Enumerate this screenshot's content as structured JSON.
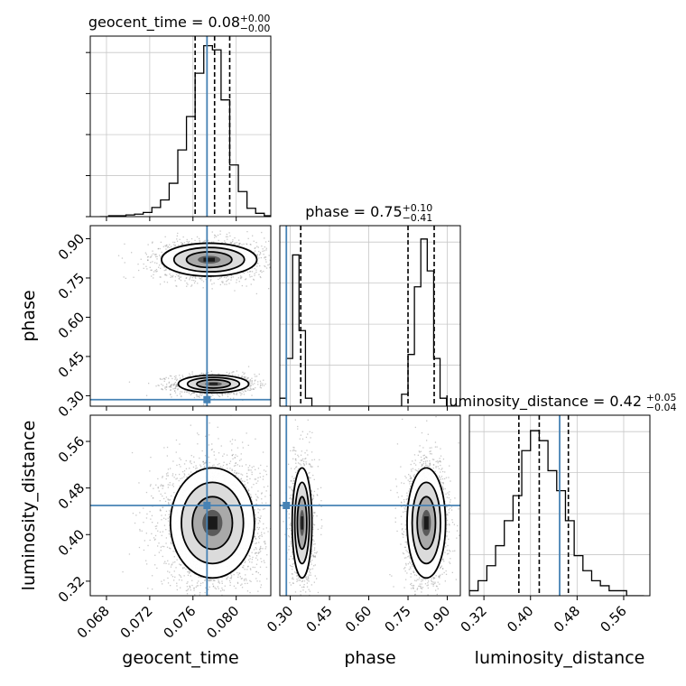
{
  "chart_data": {
    "type": "corner",
    "grid": true,
    "colors": {
      "truth": "#4682b4",
      "hist": "#000000",
      "quantile": "#000000",
      "points": "#9a9a9a",
      "grid": "#c8c8c8"
    },
    "parameters": [
      {
        "key": "geocent_time",
        "xlabel": "geocent_time",
        "range": [
          0.0665,
          0.0832
        ],
        "ticks": [
          "0.068",
          "0.072",
          "0.076",
          "0.080"
        ],
        "tick_values": [
          0.068,
          0.072,
          0.076,
          0.08
        ],
        "truth": 0.0773,
        "title": {
          "main": "geocent_time = 0.08",
          "sup": "+0.00",
          "sub": "−0.00"
        },
        "quantiles": [
          0.0762,
          0.078,
          0.0794
        ],
        "hist": {
          "bins": [
            0.0674,
            0.0682,
            0.069,
            0.0698,
            0.0706,
            0.0714,
            0.0722,
            0.073,
            0.0738,
            0.0746,
            0.0754,
            0.0762,
            0.077,
            0.0778,
            0.0786,
            0.0794,
            0.0802,
            0.081,
            0.0818,
            0.0826
          ],
          "counts": [
            0,
            1,
            1,
            2,
            3,
            5,
            11,
            20,
            40,
            80,
            120,
            172,
            205,
            200,
            140,
            62,
            30,
            10,
            4,
            1
          ]
        },
        "hist_ylim": [
          0,
          210
        ]
      },
      {
        "key": "phase",
        "xlabel": "phase",
        "ylabel": "phase",
        "range": [
          0.26,
          0.95
        ],
        "ticks": [
          "0.30",
          "0.45",
          "0.60",
          "0.75",
          "0.90"
        ],
        "tick_values": [
          0.3,
          0.45,
          0.6,
          0.75,
          0.9
        ],
        "truth": 0.285,
        "title": {
          "main": "phase = 0.75",
          "sup": "+0.10",
          "sub": "−0.41"
        },
        "quantiles": [
          0.34,
          0.75,
          0.85
        ],
        "hist": {
          "bins": [
            0.26,
            0.2845,
            0.309,
            0.3335,
            0.358,
            0.3825,
            0.407,
            0.4315,
            0.456,
            0.4805,
            0.505,
            0.5295,
            0.554,
            0.5785,
            0.603,
            0.6275,
            0.652,
            0.6765,
            0.701,
            0.7255,
            0.75,
            0.7745,
            0.799,
            0.8235,
            0.848,
            0.8725,
            0.897,
            0.9215,
            0.95
          ],
          "counts": [
            2,
            12,
            38,
            19,
            2,
            0,
            0,
            0,
            0,
            0,
            0,
            0,
            0,
            0,
            0,
            0,
            0,
            0,
            0,
            3,
            13,
            30,
            42,
            34,
            12,
            2,
            0,
            0
          ]
        },
        "hist_ylim": [
          0,
          44
        ]
      },
      {
        "key": "luminosity_distance",
        "xlabel": "luminosity_distance",
        "ylabel": "luminosity_distance",
        "range": [
          0.295,
          0.605
        ],
        "ticks": [
          "0.32",
          "0.40",
          "0.48",
          "0.56"
        ],
        "tick_values": [
          0.32,
          0.4,
          0.48,
          0.56
        ],
        "truth": 0.45,
        "title": {
          "main": "luminosity_distance = 0.42",
          "sup": "+0.05",
          "sub": "−0.04"
        },
        "quantiles": [
          0.38,
          0.415,
          0.465
        ],
        "hist": {
          "bins": [
            0.295,
            0.31,
            0.325,
            0.34,
            0.355,
            0.37,
            0.385,
            0.4,
            0.415,
            0.43,
            0.445,
            0.46,
            0.475,
            0.49,
            0.505,
            0.52,
            0.535,
            0.55,
            0.565,
            0.58,
            0.595
          ],
          "counts": [
            1,
            3,
            6,
            10,
            15,
            20,
            29,
            33,
            31,
            25,
            21,
            15,
            8,
            5,
            3,
            2,
            1,
            1,
            0,
            0
          ]
        },
        "hist_ylim": [
          0,
          35
        ]
      }
    ],
    "pairs": [
      {
        "x": "geocent_time",
        "y": "phase",
        "blobs": [
          {
            "cx": 0.0779,
            "cy": 0.345,
            "sx": 0.00155,
            "sy": 0.016,
            "n": 1300
          },
          {
            "cx": 0.0775,
            "cy": 0.82,
            "sx": 0.0021,
            "sy": 0.03,
            "n": 1700
          }
        ]
      },
      {
        "x": "geocent_time",
        "y": "luminosity_distance",
        "blobs": [
          {
            "cx": 0.0778,
            "cy": 0.42,
            "sx": 0.00185,
            "sy": 0.045,
            "n": 3000
          }
        ]
      },
      {
        "x": "phase",
        "y": "luminosity_distance",
        "blobs": [
          {
            "cx": 0.345,
            "cy": 0.42,
            "sx": 0.018,
            "sy": 0.045,
            "n": 1300
          },
          {
            "cx": 0.82,
            "cy": 0.42,
            "sx": 0.035,
            "sy": 0.045,
            "n": 1700
          }
        ]
      }
    ]
  }
}
